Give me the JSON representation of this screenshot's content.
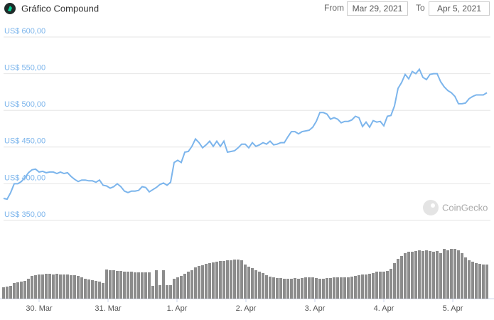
{
  "controls": {
    "from_label": "From",
    "from": "Mar 29, 2021",
    "to_label": "To",
    "to": "Apr 5, 2021"
  },
  "chart_data": [
    {
      "type": "line",
      "title": "Gráfico Compound",
      "watermark": "CoinGecko",
      "color": "#7cb5ec",
      "grid": true,
      "values": [
        380,
        379,
        388,
        400,
        400,
        403,
        408,
        415,
        419,
        420,
        416,
        417,
        415,
        416,
        416,
        414,
        416,
        414,
        415,
        410,
        406,
        403,
        405,
        405,
        404,
        404,
        402,
        405,
        398,
        397,
        394,
        396,
        400,
        396,
        390,
        388,
        390,
        390,
        391,
        396,
        395,
        389,
        392,
        395,
        399,
        401,
        398,
        402,
        429,
        432,
        429,
        443,
        444,
        451,
        461,
        456,
        449,
        453,
        458,
        451,
        458,
        451,
        458,
        443,
        444,
        445,
        449,
        454,
        454,
        449,
        456,
        451,
        453,
        456,
        454,
        458,
        453,
        454,
        456,
        456,
        464,
        471,
        471,
        468,
        471,
        472,
        473,
        477,
        485,
        497,
        497,
        495,
        488,
        490,
        488,
        483,
        485,
        485,
        487,
        492,
        490,
        478,
        484,
        477,
        486,
        484,
        485,
        479,
        492,
        493,
        506,
        530,
        538,
        549,
        543,
        553,
        550,
        556,
        545,
        542,
        549,
        550,
        550,
        539,
        532,
        527,
        524,
        519,
        509,
        509,
        510,
        516,
        519,
        521,
        521,
        521,
        524
      ],
      "xlim": [
        0,
        136
      ],
      "xticks": [
        {
          "value": 10,
          "label": "30. Mar"
        },
        {
          "value": 29.4,
          "label": "31. Mar"
        },
        {
          "value": 48.8,
          "label": "1. Apr"
        },
        {
          "value": 68.2,
          "label": "2. Apr"
        },
        {
          "value": 87.6,
          "label": "3. Apr"
        },
        {
          "value": 107,
          "label": "4. Apr"
        },
        {
          "value": 126.4,
          "label": "5. Apr"
        }
      ],
      "ylim": [
        350,
        600
      ],
      "yticks": [
        {
          "value": 350,
          "label": "US$ 350,00"
        },
        {
          "value": 400,
          "label": "US$ 400,00"
        },
        {
          "value": 450,
          "label": "US$ 450,00"
        },
        {
          "value": 500,
          "label": "US$ 500,00"
        },
        {
          "value": 550,
          "label": "US$ 550,00"
        },
        {
          "value": 600,
          "label": "US$ 600,00"
        }
      ]
    },
    {
      "type": "bar",
      "color": "#8c8c8c",
      "values": [
        16,
        17,
        18,
        22,
        23,
        24,
        25,
        28,
        32,
        33,
        34,
        34,
        35,
        35,
        34,
        35,
        34,
        34,
        34,
        33,
        33,
        32,
        30,
        28,
        27,
        26,
        25,
        24,
        22,
        41,
        40,
        40,
        39,
        39,
        38,
        38,
        38,
        37,
        37,
        37,
        37,
        37,
        18,
        40,
        19,
        40,
        19,
        19,
        28,
        30,
        32,
        35,
        38,
        40,
        44,
        46,
        47,
        49,
        50,
        51,
        52,
        53,
        53,
        54,
        54,
        55,
        55,
        54,
        48,
        45,
        43,
        40,
        38,
        36,
        33,
        31,
        30,
        29,
        29,
        28,
        28,
        28,
        29,
        28,
        29,
        30,
        30,
        30,
        29,
        28,
        28,
        29,
        29,
        30,
        30,
        30,
        30,
        30,
        31,
        32,
        33,
        34,
        34,
        35,
        36,
        38,
        38,
        38,
        39,
        42,
        50,
        56,
        60,
        64,
        66,
        66,
        67,
        68,
        67,
        68,
        67,
        66,
        67,
        64,
        70,
        68,
        70,
        70,
        68,
        64,
        58,
        54,
        52,
        50,
        49,
        48,
        48
      ]
    }
  ]
}
